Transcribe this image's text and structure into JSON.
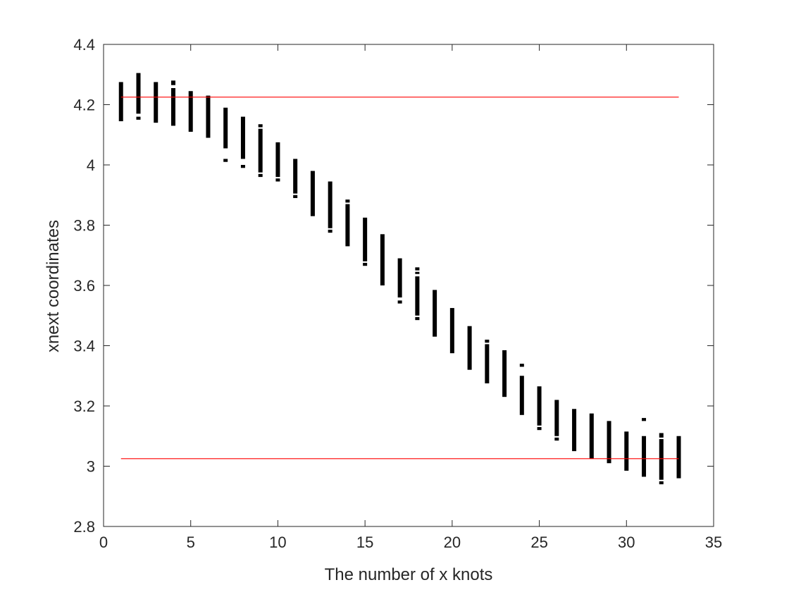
{
  "chart_data": {
    "type": "scatter",
    "title": "",
    "xlabel": "The number of x knots",
    "ylabel": "xnext coordinates",
    "xlim": [
      0,
      35
    ],
    "ylim": [
      2.8,
      4.4
    ],
    "x_ticks": [
      0,
      5,
      10,
      15,
      20,
      25,
      30,
      35
    ],
    "y_ticks": [
      2.8,
      3,
      3.2,
      3.4,
      3.6,
      3.8,
      4,
      4.2,
      4.4
    ],
    "x_tick_labels": [
      "0",
      "5",
      "10",
      "15",
      "20",
      "25",
      "30",
      "35"
    ],
    "y_tick_labels": [
      "2.8",
      "3",
      "3.2",
      "3.4",
      "3.6",
      "3.8",
      "4",
      "4.2",
      "4.4"
    ],
    "grid": false,
    "colors": {
      "points": "#000000",
      "reference_lines": "#ff0000",
      "axes": "#262626"
    },
    "reference_lines": [
      {
        "y": 4.225,
        "x_start": 1,
        "x_end": 33
      },
      {
        "y": 3.025,
        "x_start": 1,
        "x_end": 33
      }
    ],
    "series": [
      {
        "ranges": [
          {
            "x": 1,
            "segments": [
              [
                4.145,
                4.275
              ]
            ]
          },
          {
            "x": 2,
            "segments": [
              [
                4.15,
                4.16
              ],
              [
                4.17,
                4.305
              ]
            ]
          },
          {
            "x": 3,
            "segments": [
              [
                4.14,
                4.275
              ]
            ]
          },
          {
            "x": 4,
            "segments": [
              [
                4.13,
                4.255
              ],
              [
                4.265,
                4.28
              ]
            ]
          },
          {
            "x": 5,
            "segments": [
              [
                4.11,
                4.245
              ]
            ]
          },
          {
            "x": 6,
            "segments": [
              [
                4.09,
                4.23
              ]
            ]
          },
          {
            "x": 7,
            "segments": [
              [
                4.01,
                4.02
              ],
              [
                4.055,
                4.19
              ]
            ]
          },
          {
            "x": 8,
            "segments": [
              [
                3.99,
                4.0
              ],
              [
                4.02,
                4.16
              ]
            ]
          },
          {
            "x": 9,
            "segments": [
              [
                3.96,
                3.97
              ],
              [
                3.975,
                4.12
              ],
              [
                4.125,
                4.135
              ]
            ]
          },
          {
            "x": 10,
            "segments": [
              [
                3.945,
                3.955
              ],
              [
                3.96,
                4.075
              ]
            ]
          },
          {
            "x": 11,
            "segments": [
              [
                3.89,
                3.9
              ],
              [
                3.905,
                4.02
              ]
            ]
          },
          {
            "x": 12,
            "segments": [
              [
                3.83,
                3.98
              ]
            ]
          },
          {
            "x": 13,
            "segments": [
              [
                3.775,
                3.785
              ],
              [
                3.79,
                3.945
              ]
            ]
          },
          {
            "x": 14,
            "segments": [
              [
                3.73,
                3.87
              ],
              [
                3.875,
                3.885
              ]
            ]
          },
          {
            "x": 15,
            "segments": [
              [
                3.665,
                3.675
              ],
              [
                3.68,
                3.825
              ]
            ]
          },
          {
            "x": 16,
            "segments": [
              [
                3.6,
                3.77
              ]
            ]
          },
          {
            "x": 17,
            "segments": [
              [
                3.54,
                3.55
              ],
              [
                3.56,
                3.69
              ]
            ]
          },
          {
            "x": 18,
            "segments": [
              [
                3.485,
                3.495
              ],
              [
                3.5,
                3.63
              ],
              [
                3.64,
                3.645
              ],
              [
                3.65,
                3.66
              ]
            ]
          },
          {
            "x": 19,
            "segments": [
              [
                3.43,
                3.585
              ]
            ]
          },
          {
            "x": 20,
            "segments": [
              [
                3.375,
                3.525
              ]
            ]
          },
          {
            "x": 21,
            "segments": [
              [
                3.32,
                3.465
              ]
            ]
          },
          {
            "x": 22,
            "segments": [
              [
                3.275,
                3.405
              ],
              [
                3.41,
                3.42
              ]
            ]
          },
          {
            "x": 23,
            "segments": [
              [
                3.23,
                3.385
              ]
            ]
          },
          {
            "x": 24,
            "segments": [
              [
                3.17,
                3.3
              ],
              [
                3.33,
                3.34
              ]
            ]
          },
          {
            "x": 25,
            "segments": [
              [
                3.12,
                3.13
              ],
              [
                3.135,
                3.265
              ]
            ]
          },
          {
            "x": 26,
            "segments": [
              [
                3.085,
                3.095
              ],
              [
                3.1,
                3.22
              ]
            ]
          },
          {
            "x": 27,
            "segments": [
              [
                3.05,
                3.19
              ]
            ]
          },
          {
            "x": 28,
            "segments": [
              [
                3.025,
                3.175
              ]
            ]
          },
          {
            "x": 29,
            "segments": [
              [
                3.01,
                3.15
              ]
            ]
          },
          {
            "x": 30,
            "segments": [
              [
                2.985,
                3.115
              ]
            ]
          },
          {
            "x": 31,
            "segments": [
              [
                2.965,
                3.1
              ],
              [
                3.15,
                3.16
              ]
            ]
          },
          {
            "x": 32,
            "segments": [
              [
                2.94,
                2.95
              ],
              [
                2.955,
                3.09
              ],
              [
                3.095,
                3.11
              ]
            ]
          },
          {
            "x": 33,
            "segments": [
              [
                2.96,
                3.1
              ]
            ]
          }
        ]
      }
    ]
  }
}
